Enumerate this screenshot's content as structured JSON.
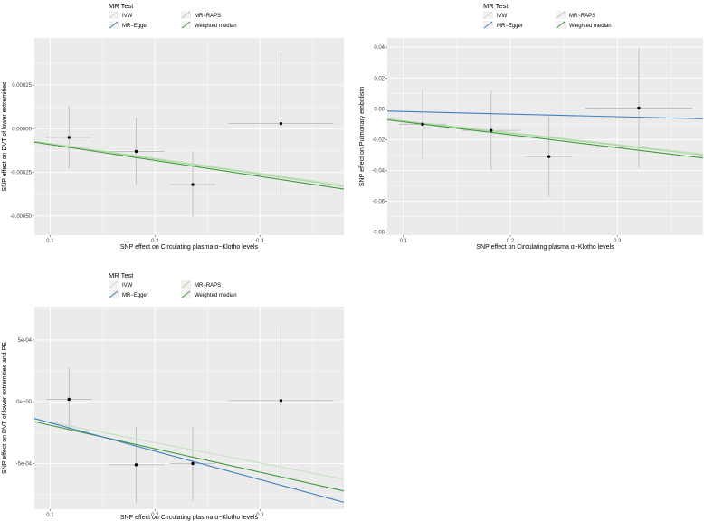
{
  "colors": {
    "panel_bg": "#EBEBEB",
    "grid": "#FFFFFF",
    "point": "#000000",
    "errorbar": "#BDBDBD",
    "IVW": "#C6E1C0",
    "MR-Egger": "#3F7FBF",
    "MR-RAPS": "#A9D59B",
    "Weighted median": "#3E9B3E"
  },
  "legend": {
    "title": "MR Test",
    "items": [
      "IVW",
      "MR−Egger",
      "MR−RAPS",
      "Weighted median"
    ]
  },
  "chart_data": [
    {
      "type": "scatter",
      "xlabel": "SNP effect on Circulating plasma α−Klotho levels",
      "ylabel": "SNP effect on DVT of lower extremities",
      "xlim": [
        0.085,
        0.38
      ],
      "ylim": [
        -0.00061,
        0.00052
      ],
      "xticks": [
        0.1,
        0.2,
        0.3
      ],
      "xtick_labels": [
        "0.1",
        "0.2",
        "0.3"
      ],
      "yticks": [
        -0.0005,
        -0.00025,
        0.0,
        0.00025
      ],
      "ytick_labels": [
        "-0.00050",
        "-0.00025",
        "0.00000",
        "0.00025"
      ],
      "points": [
        {
          "x": 0.118,
          "y": -5e-05,
          "xerr": 0.022,
          "yerr": 0.00018
        },
        {
          "x": 0.182,
          "y": -0.00013,
          "xerr": 0.027,
          "yerr": 0.00019
        },
        {
          "x": 0.236,
          "y": -0.00032,
          "xerr": 0.022,
          "yerr": 0.00019
        },
        {
          "x": 0.32,
          "y": 3e-05,
          "xerr": 0.05,
          "yerr": 0.00041
        }
      ],
      "lines": [
        {
          "method": "IVW",
          "intercept": 0,
          "slope": -0.00085
        },
        {
          "method": "MR-RAPS",
          "intercept": 0,
          "slope": -0.00087
        },
        {
          "method": "Weighted median",
          "intercept": 0,
          "slope": -0.00091
        }
      ]
    },
    {
      "type": "scatter",
      "xlabel": "SNP effect on Circulating plasma α−Klotho levels",
      "ylabel": "SNP effect on Pulmonary embolism",
      "xlim": [
        0.085,
        0.38
      ],
      "ylim": [
        -0.082,
        0.046
      ],
      "xticks": [
        0.1,
        0.2,
        0.3
      ],
      "xtick_labels": [
        "0.1",
        "0.2",
        "0.3"
      ],
      "yticks": [
        -0.08,
        -0.06,
        -0.04,
        -0.02,
        0.0,
        0.02,
        0.04
      ],
      "ytick_labels": [
        "-0.08",
        "-0.06",
        "-0.04",
        "-0.02",
        "0.00",
        "0.02",
        "0.04"
      ],
      "points": [
        {
          "x": 0.118,
          "y": -0.01,
          "xerr": 0.022,
          "yerr": 0.023
        },
        {
          "x": 0.182,
          "y": -0.014,
          "xerr": 0.027,
          "yerr": 0.026
        },
        {
          "x": 0.236,
          "y": -0.031,
          "xerr": 0.022,
          "yerr": 0.026
        },
        {
          "x": 0.32,
          "y": 0.0005,
          "xerr": 0.05,
          "yerr": 0.039
        }
      ],
      "lines": [
        {
          "method": "MR-Egger",
          "intercept": 0,
          "slope": -0.017
        },
        {
          "method": "IVW",
          "intercept": 0,
          "slope": -0.077
        },
        {
          "method": "MR-RAPS",
          "intercept": 0,
          "slope": -0.079
        },
        {
          "method": "Weighted median",
          "intercept": 0,
          "slope": -0.084
        }
      ]
    },
    {
      "type": "scatter",
      "xlabel": "SNP effect on Circulating plasma α−Klotho levels",
      "ylabel": "SNP effect on DVT of lower extremities and PE",
      "xlim": [
        0.085,
        0.38
      ],
      "ylim": [
        -0.00087,
        0.00077
      ],
      "xticks": [
        0.1,
        0.2,
        0.3
      ],
      "xtick_labels": [
        "0.1",
        "0.2",
        "0.3"
      ],
      "yticks": [
        -0.0005,
        0.0,
        0.0005
      ],
      "ytick_labels": [
        "-5e-04",
        "0e+00",
        "5e-04"
      ],
      "points": [
        {
          "x": 0.118,
          "y": 2e-05,
          "xerr": 0.022,
          "yerr": 0.00026
        },
        {
          "x": 0.182,
          "y": -0.00051,
          "xerr": 0.027,
          "yerr": 0.00031
        },
        {
          "x": 0.236,
          "y": -0.0005,
          "xerr": 0.022,
          "yerr": 0.0003
        },
        {
          "x": 0.32,
          "y": 1e-05,
          "xerr": 0.05,
          "yerr": 0.00061
        }
      ],
      "lines": [
        {
          "method": "IVW",
          "intercept": 0,
          "slope": -0.00165
        },
        {
          "method": "Weighted median",
          "intercept": 0,
          "slope": -0.0019
        },
        {
          "method": "MR-Egger",
          "intercept": 6e-05,
          "slope": -0.0023
        }
      ]
    }
  ]
}
